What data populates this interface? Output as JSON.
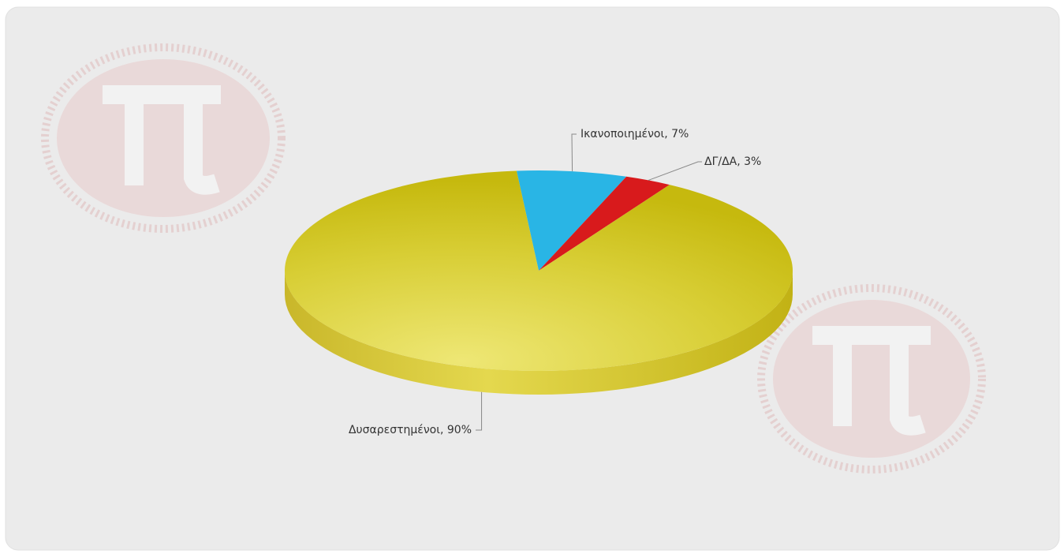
{
  "chart_data": {
    "type": "pie",
    "values": [
      7,
      3,
      90
    ],
    "value_labels": [
      "Ικανοποιημένοι, 7%",
      "ΔΓ/ΔΑ, 3%",
      "Δυσαρεστημένοι, 90%"
    ],
    "colors": [
      "#29b5e5",
      "#d81a1c",
      "#d6cc2a"
    ]
  }
}
